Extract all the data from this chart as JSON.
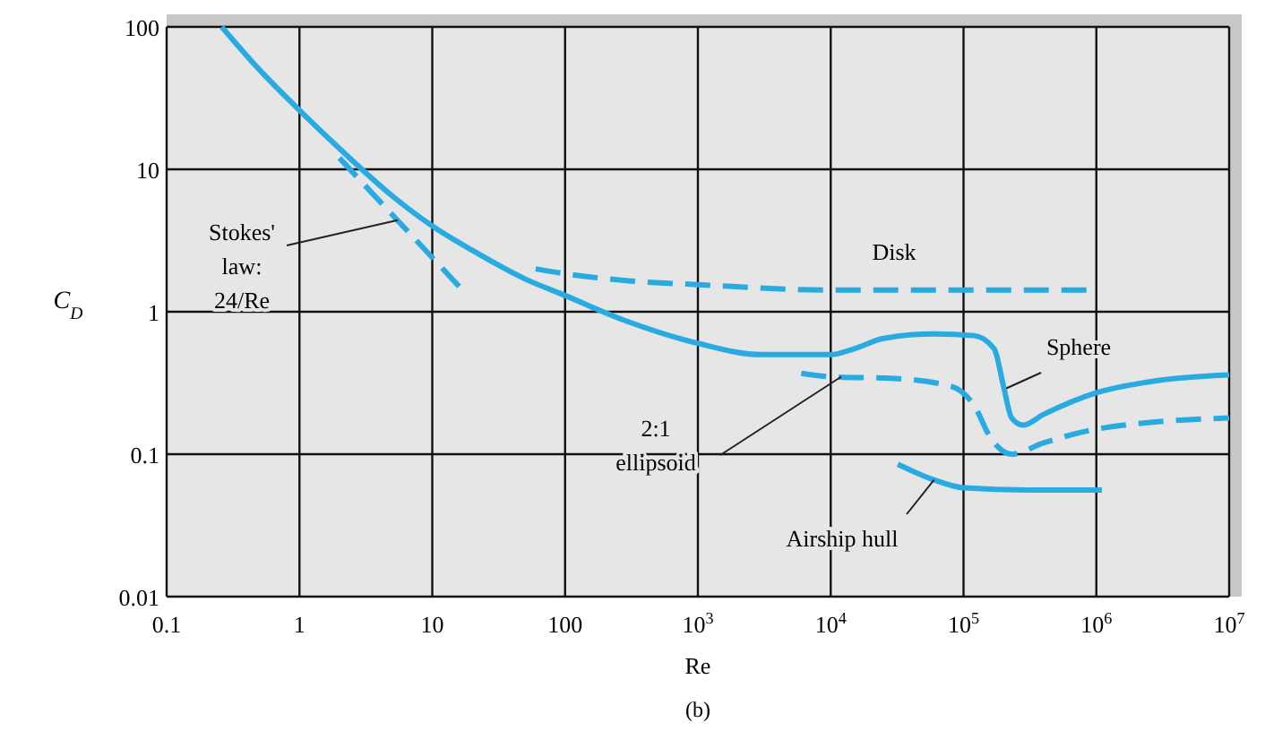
{
  "chart_data": {
    "type": "line",
    "xlabel": "Re",
    "ylabel": "C$_{D}$",
    "log": "xy",
    "grid": true,
    "marker": "none",
    "xlim": [
      0.1,
      10000000
    ],
    "ylim": [
      0.01,
      100
    ],
    "xticks": [
      0.1,
      1,
      10,
      100,
      {
        "value": 1000,
        "label": "10$^{3}$"
      },
      {
        "value": 10000,
        "label": "10$^{4}$"
      },
      {
        "value": 100000,
        "label": "10$^{5}$"
      },
      {
        "value": 1000000,
        "label": "10$^{6}$"
      },
      {
        "value": 10000000,
        "label": "10$^{7}$"
      }
    ],
    "yticks": [
      0.01,
      0.1,
      1,
      10,
      100
    ],
    "series": [
      {
        "color": "#29abe2",
        "line_style": "solid",
        "x": [
          0.26,
          0.5,
          1,
          2,
          5,
          10,
          20,
          50,
          100,
          300,
          1000,
          3000,
          10000,
          15000,
          25000,
          60000,
          120000,
          170000,
          200000,
          230000,
          280000,
          400000,
          1000000,
          3000000,
          10000000
        ],
        "values": [
          100,
          50,
          26,
          14,
          6.5,
          4,
          2.7,
          1.7,
          1.3,
          0.85,
          0.6,
          0.5,
          0.5,
          0.55,
          0.65,
          0.7,
          0.68,
          0.55,
          0.3,
          0.18,
          0.16,
          0.19,
          0.27,
          0.33,
          0.36
        ]
      },
      {
        "color": "#29abe2",
        "line_style": "dashed",
        "x": [
          2,
          5,
          10,
          17
        ],
        "values": [
          12,
          4.8,
          2.4,
          1.41
        ]
      },
      {
        "color": "#29abe2",
        "line_style": "dashed",
        "x": [
          60,
          100,
          300,
          1000,
          10000,
          100000,
          900000
        ],
        "values": [
          2.0,
          1.85,
          1.65,
          1.55,
          1.42,
          1.42,
          1.42
        ]
      },
      {
        "color": "#29abe2",
        "line_style": "dashed",
        "x": [
          6000,
          10000,
          30000,
          80000,
          120000,
          160000,
          230000,
          400000,
          1000000,
          10000000
        ],
        "values": [
          0.37,
          0.35,
          0.34,
          0.3,
          0.22,
          0.13,
          0.1,
          0.12,
          0.15,
          0.18
        ]
      },
      {
        "color": "#29abe2",
        "line_style": "solid",
        "x": [
          32000,
          60000,
          100000,
          300000,
          1100000
        ],
        "values": [
          0.085,
          0.066,
          0.058,
          0.056,
          0.056
        ]
      }
    ],
    "annotations": [
      {
        "text": "Stokes' law: 24/Re",
        "x": 5.5,
        "y": 4.4
      },
      {
        "text": "Disk",
        "x": 30000,
        "y": 1.42
      },
      {
        "text": "Sphere",
        "x": 210000,
        "y": 0.29
      },
      {
        "text": "2:1 ellipsoid",
        "x": 12000,
        "y": 0.35
      },
      {
        "text": "Airship hull",
        "x": 60000,
        "y": 0.066
      },
      "(b)"
    ]
  }
}
